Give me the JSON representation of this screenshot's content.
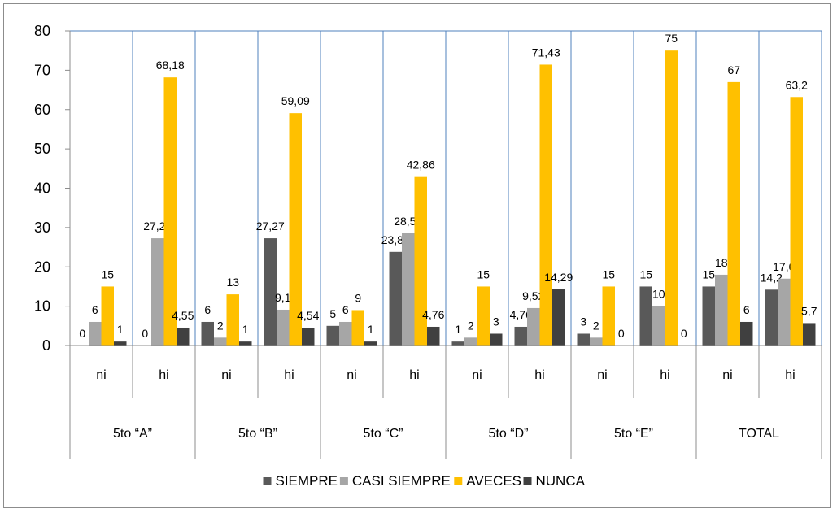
{
  "chart_data": {
    "type": "bar",
    "title": "",
    "xlabel": "",
    "ylabel": "",
    "ylim": [
      0,
      80
    ],
    "yticks": [
      "0",
      "10",
      "20",
      "30",
      "40",
      "50",
      "60",
      "70",
      "80"
    ],
    "grid": "vertical",
    "legend_position": "bottom",
    "groups": [
      "5to “A”",
      "5to “B”",
      "5to “C”",
      "5to “D”",
      "5to “E”",
      "TOTAL"
    ],
    "categories": [
      "ni",
      "hi",
      "ni",
      "hi",
      "ni",
      "hi",
      "ni",
      "hi",
      "ni",
      "hi",
      "ni",
      "hi"
    ],
    "series": [
      {
        "name": "SIEMPRE",
        "color": "#595959",
        "values": [
          0,
          0,
          6,
          27.27,
          5,
          23.81,
          1,
          4.76,
          3,
          15,
          15,
          14.2
        ],
        "labels": [
          "0",
          "0",
          "6",
          "27,27",
          "5",
          "23,81",
          "1",
          "4,76",
          "3",
          "15",
          "15",
          "14,2"
        ]
      },
      {
        "name": "CASI SIEMPRE",
        "color": "#a6a6a6",
        "values": [
          6,
          27.27,
          2,
          9.1,
          6,
          28.57,
          2,
          9.52,
          2,
          10,
          18,
          17.0
        ],
        "labels": [
          "6",
          "27,27",
          "2",
          "9,1",
          "6",
          "28,57",
          "2",
          "9,52",
          "2",
          "10",
          "18",
          "17,0"
        ]
      },
      {
        "name": "AVECES",
        "color": "#ffc000",
        "values": [
          15,
          68.18,
          13,
          59.09,
          9,
          42.86,
          15,
          71.43,
          15,
          75,
          67,
          63.2
        ],
        "labels": [
          "15",
          "68,18",
          "13",
          "59,09",
          "9",
          "42,86",
          "15",
          "71,43",
          "15",
          "75",
          "67",
          "63,2"
        ]
      },
      {
        "name": "NUNCA",
        "color": "#404040",
        "values": [
          1,
          4.55,
          1,
          4.54,
          1,
          4.76,
          3,
          14.29,
          0,
          0,
          6,
          5.7
        ],
        "labels": [
          "1",
          "4,55",
          "1",
          "4,54",
          "1",
          "4,76",
          "3",
          "14,29",
          "0",
          "0",
          "6",
          "5,7"
        ]
      }
    ]
  }
}
